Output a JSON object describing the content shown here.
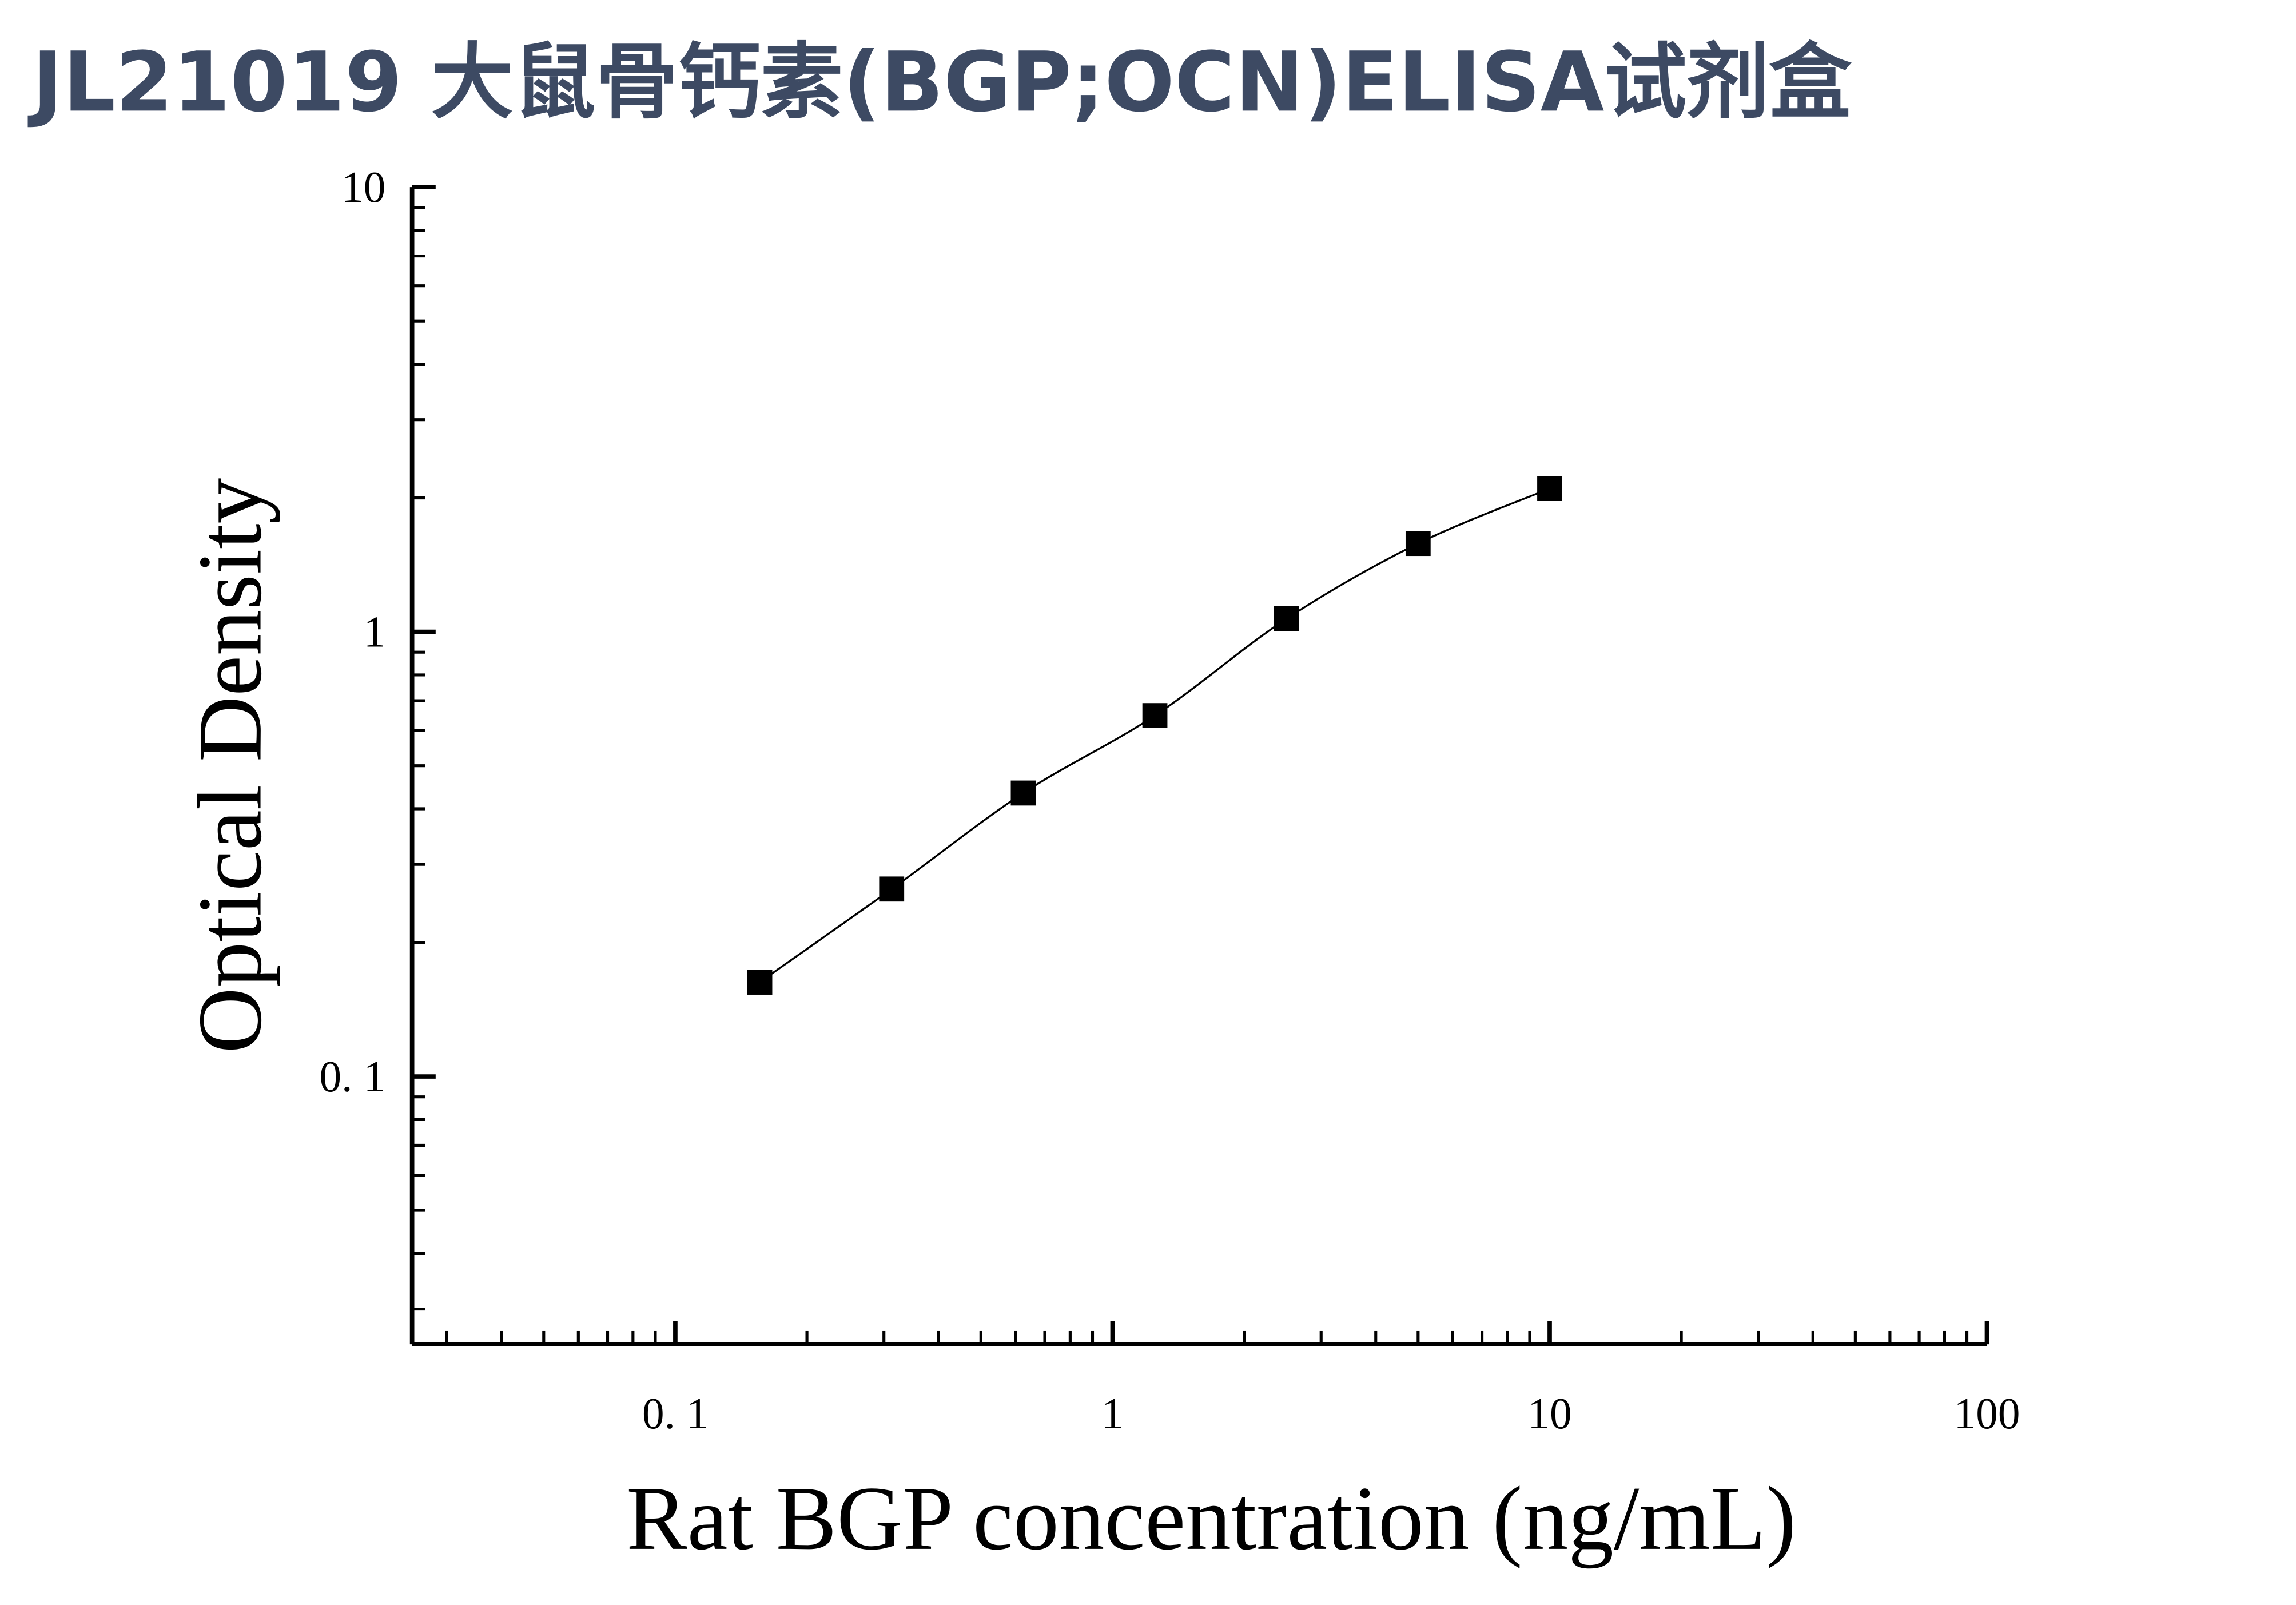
{
  "chart_data": {
    "type": "scatter",
    "title": "JL21019 大鼠骨钙素(BGP;OCN)ELISA试剂盒",
    "x_label": "Rat BGP concentration (ng/mL)",
    "y_label": "Optical Density",
    "x_scale": "log",
    "y_scale": "log",
    "xlim": [
      0.025,
      100
    ],
    "ylim": [
      0.025,
      10
    ],
    "xticks": [
      {
        "value": 0.1,
        "label": "0. 1"
      },
      1,
      10,
      100
    ],
    "yticks": [
      {
        "value": 0.1,
        "label": "0. 1"
      },
      1,
      10
    ],
    "minor_ticks": true,
    "series": [
      {
        "color": "#000000",
        "marker": "square",
        "line": "smooth",
        "x": [
          0.156,
          0.3125,
          0.625,
          1.25,
          2.5,
          5,
          10
        ],
        "values": [
          0.163,
          0.264,
          0.434,
          0.648,
          1.07,
          1.58,
          2.1
        ]
      }
    ]
  }
}
